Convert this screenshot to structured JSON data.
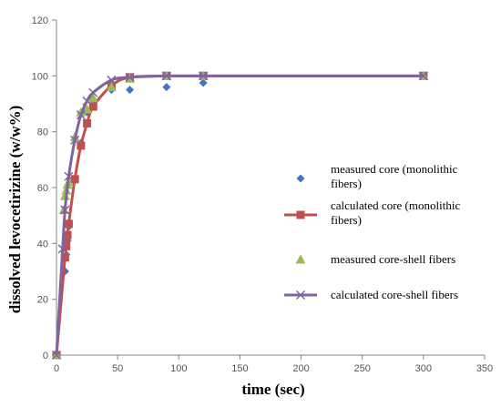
{
  "chart_data": {
    "type": "scatter",
    "xlabel": "time (sec)",
    "ylabel": "dissolved levocetirizine (w/w%)",
    "xlim": [
      0,
      350
    ],
    "ylim": [
      0,
      120
    ],
    "xticks": [
      0,
      50,
      100,
      150,
      200,
      250,
      300,
      350
    ],
    "yticks": [
      0,
      20,
      40,
      60,
      80,
      100,
      120
    ],
    "grid": false,
    "legend_position": "right",
    "series": [
      {
        "name": "measured core (monolithic fibers)",
        "kind": "markers",
        "marker": "diamond",
        "color": "#4472C4",
        "x": [
          0,
          7,
          8,
          9,
          10,
          15,
          20,
          25,
          30,
          45,
          60,
          90,
          120,
          300
        ],
        "y": [
          0,
          30,
          36,
          41,
          46,
          63,
          76,
          87,
          90,
          95,
          95,
          96,
          97.5,
          100
        ]
      },
      {
        "name": "calculated core (monolithic fibers)",
        "kind": "line-markers",
        "marker": "square",
        "color": "#C0504D",
        "x": [
          0,
          7,
          8,
          9,
          10,
          15,
          20,
          25,
          30,
          45,
          60,
          90,
          120,
          300
        ],
        "y": [
          0,
          35,
          39,
          43,
          47,
          63,
          75,
          83,
          89,
          96.5,
          99.5,
          100,
          100,
          100
        ]
      },
      {
        "name": "measured core-shell fibers",
        "kind": "markers",
        "marker": "triangle",
        "color": "#9BBB59",
        "x": [
          0,
          6,
          7,
          8,
          9,
          10,
          15,
          20,
          25,
          30,
          45,
          60,
          90,
          120,
          300
        ],
        "y": [
          0,
          52,
          57,
          59,
          61,
          62,
          78,
          87,
          88,
          92,
          96,
          99,
          100,
          100,
          100
        ]
      },
      {
        "name": "calculated core-shell fibers",
        "kind": "line-markers",
        "marker": "x",
        "color": "#8064A2",
        "x": [
          0,
          5,
          7,
          10,
          15,
          20,
          25,
          30,
          45,
          60,
          90,
          120,
          300
        ],
        "y": [
          0,
          38,
          52,
          64,
          77,
          86,
          91,
          94,
          98.5,
          99.5,
          100,
          100,
          100
        ]
      }
    ]
  }
}
